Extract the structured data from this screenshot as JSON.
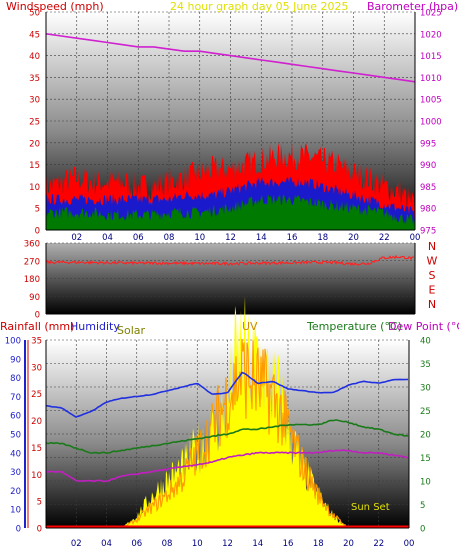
{
  "colors": {
    "windspeed": "#ff0000",
    "gust_fill": "#ff0000",
    "avg_fill": "#1a1acc",
    "low_fill": "#007a00",
    "barometer": "#d020d0",
    "direction": "#ff2020",
    "humidity": "#2030e0",
    "temperature": "#1a7a1a",
    "dewpoint": "#c020c0",
    "solar": "#ffff00",
    "uv": "#ff9900",
    "rainfall": "#ff0000",
    "title": "#e0e000",
    "axis_red": "#cc0000",
    "axis_blue": "#2020cc",
    "axis_green": "#1a7a1a",
    "axis_magenta": "#c000c0",
    "axis_olive": "#808000",
    "uv_label": "#cc8800",
    "sunset": "#e0e000"
  },
  "chart_data": [
    {
      "type": "area",
      "title": "24 hour graph day  05 June 2025",
      "ylabel_left": "Windspeed (mph)",
      "ylabel_right": "Barometer (hpa)",
      "x_ticks": [
        "02",
        "04",
        "06",
        "08",
        "10",
        "12",
        "14",
        "16",
        "18",
        "20",
        "22",
        "00"
      ],
      "y_left_ticks": [
        "0",
        "5",
        "10",
        "15",
        "20",
        "25",
        "30",
        "35",
        "40",
        "45",
        "50"
      ],
      "y_right_ticks": [
        "975",
        "980",
        "985",
        "990",
        "995",
        "1000",
        "1005",
        "1010",
        "1015",
        "1020",
        "1025"
      ],
      "ylim_left": [
        0,
        50
      ],
      "ylim_right": [
        975,
        1025
      ],
      "series": [
        {
          "name": "Windspeed (mph)",
          "kind": "gust",
          "x": [
            0,
            1,
            2,
            3,
            4,
            5,
            6,
            7,
            8,
            9,
            10,
            11,
            12,
            13,
            14,
            15,
            16,
            17,
            18,
            19,
            20,
            21,
            22,
            23,
            24
          ],
          "values": [
            10,
            11,
            12,
            11,
            11,
            11,
            10,
            10,
            11,
            12,
            13,
            14,
            14,
            15,
            16,
            17,
            17,
            17,
            16,
            15,
            13,
            12,
            10,
            9,
            6
          ]
        },
        {
          "name": "avg",
          "kind": "avg",
          "x": [
            0,
            1,
            2,
            3,
            4,
            5,
            6,
            7,
            8,
            9,
            10,
            11,
            12,
            13,
            14,
            15,
            16,
            17,
            18,
            19,
            20,
            21,
            22,
            23,
            24
          ],
          "values": [
            7,
            7,
            7,
            7,
            7,
            7,
            7,
            7,
            7,
            8,
            8,
            8,
            9,
            10,
            11,
            11,
            11,
            11,
            10,
            9,
            8,
            7,
            6,
            5,
            4
          ]
        },
        {
          "name": "low",
          "kind": "low",
          "x": [
            0,
            1,
            2,
            3,
            4,
            5,
            6,
            7,
            8,
            9,
            10,
            11,
            12,
            13,
            14,
            15,
            16,
            17,
            18,
            19,
            20,
            21,
            22,
            23,
            24
          ],
          "values": [
            4,
            4,
            4,
            4,
            3.5,
            3.5,
            3.5,
            3.5,
            4,
            4,
            4,
            4.5,
            5,
            6,
            7,
            7,
            7,
            6.5,
            6,
            5.5,
            5,
            4.5,
            4,
            3,
            2
          ]
        },
        {
          "name": "Barometer (hpa)",
          "kind": "baro",
          "x": [
            0,
            1,
            2,
            3,
            4,
            5,
            6,
            7,
            8,
            9,
            10,
            11,
            12,
            13,
            14,
            15,
            16,
            17,
            18,
            19,
            20,
            21,
            22,
            23,
            24
          ],
          "values": [
            1020,
            1019.5,
            1019,
            1018.5,
            1018,
            1017.5,
            1017,
            1017,
            1016.5,
            1016,
            1016,
            1015.5,
            1015,
            1014.5,
            1014,
            1013.5,
            1013,
            1012.5,
            1012,
            1011.5,
            1011,
            1010.5,
            1010,
            1009.5,
            1009
          ]
        }
      ]
    },
    {
      "type": "line",
      "y_left_ticks": [
        "0",
        "90",
        "180",
        "270",
        "360"
      ],
      "compass": [
        "N",
        "W",
        "S",
        "E",
        "N"
      ],
      "ylim": [
        0,
        360
      ],
      "series": [
        {
          "name": "Wind direction",
          "x": [
            0,
            2,
            4,
            6,
            8,
            10,
            12,
            14,
            16,
            18,
            19,
            20,
            21,
            22,
            23,
            24
          ],
          "values": [
            262,
            262,
            260,
            258,
            258,
            256,
            256,
            258,
            260,
            262,
            260,
            254,
            256,
            285,
            290,
            282
          ]
        }
      ]
    },
    {
      "type": "line",
      "labels": {
        "rainfall": "Rainfall (mm)",
        "humidity": "Humidity",
        "solar": "Solar",
        "uv": "UV",
        "temperature": "Temperature (°C)",
        "dewpoint": "Dew Point (°C)",
        "sunset": "Sun Set"
      },
      "x_ticks": [
        "02",
        "04",
        "06",
        "08",
        "10",
        "12",
        "14",
        "16",
        "18",
        "20",
        "22",
        "00"
      ],
      "y_axis1_ticks": [
        "0",
        "10",
        "20",
        "30",
        "40",
        "50",
        "60",
        "70",
        "80",
        "90",
        "100"
      ],
      "y_axis2_ticks": [
        "0",
        "5",
        "10",
        "15",
        "20",
        "25",
        "30",
        "35"
      ],
      "y_right_ticks": [
        "0",
        "5",
        "10",
        "15",
        "20",
        "25",
        "30",
        "35",
        "40"
      ],
      "ylim_humidity": [
        0,
        100
      ],
      "ylim_temperature": [
        0,
        40
      ],
      "series": [
        {
          "name": "Humidity",
          "x": [
            0,
            1,
            2,
            3,
            4,
            5,
            6,
            7,
            8,
            9,
            10,
            11,
            12,
            13,
            14,
            15,
            16,
            17,
            18,
            19,
            20,
            21,
            22,
            23,
            24
          ],
          "values": [
            65,
            64,
            59,
            62,
            67,
            69,
            70,
            71,
            73,
            75,
            77,
            71,
            72,
            83,
            77,
            78,
            74,
            73,
            72,
            72,
            76,
            78,
            77,
            79,
            79
          ]
        },
        {
          "name": "Temperature (°C)",
          "x": [
            0,
            1,
            2,
            3,
            4,
            5,
            6,
            7,
            8,
            9,
            10,
            11,
            12,
            13,
            14,
            15,
            16,
            17,
            18,
            19,
            20,
            21,
            22,
            23,
            24
          ],
          "values": [
            18,
            18,
            17,
            16,
            16,
            16.5,
            17,
            17.5,
            18,
            18.5,
            19,
            19.5,
            20,
            21,
            21,
            21.5,
            22,
            22,
            22,
            23,
            22.5,
            21.5,
            21,
            20,
            19.5
          ]
        },
        {
          "name": "Dew Point (°C)",
          "x": [
            0,
            1,
            2,
            3,
            4,
            5,
            6,
            7,
            8,
            9,
            10,
            11,
            12,
            13,
            14,
            15,
            16,
            17,
            18,
            19,
            20,
            21,
            22,
            23,
            24
          ],
          "values": [
            12,
            12,
            10,
            10,
            10,
            11,
            11.5,
            12,
            12.5,
            13,
            13.5,
            14,
            15,
            15.5,
            16,
            16,
            16,
            16,
            16,
            16.5,
            16.5,
            16,
            16,
            15.5,
            15
          ]
        },
        {
          "name": "Solar",
          "x": [
            0,
            5,
            6,
            7,
            8,
            9,
            10,
            11,
            12,
            12.5,
            13,
            13.5,
            14,
            14.5,
            15,
            15.5,
            16,
            17,
            18,
            19,
            20,
            24
          ],
          "values": [
            0,
            0,
            3,
            8,
            12,
            15,
            20,
            25,
            30,
            42,
            45,
            40,
            44,
            38,
            35,
            33,
            25,
            15,
            8,
            3,
            0,
            0
          ]
        },
        {
          "name": "UV",
          "x": [
            0,
            5,
            6,
            7,
            8,
            9,
            10,
            11,
            12,
            13,
            14,
            15,
            16,
            17,
            18,
            19,
            20,
            24
          ],
          "values": [
            0,
            0,
            2,
            5,
            8,
            12,
            18,
            24,
            32,
            38,
            35,
            32,
            24,
            15,
            8,
            3,
            0,
            0
          ]
        },
        {
          "name": "Rainfall (mm)",
          "x": [
            0,
            24
          ],
          "values": [
            0,
            0
          ]
        }
      ]
    }
  ]
}
